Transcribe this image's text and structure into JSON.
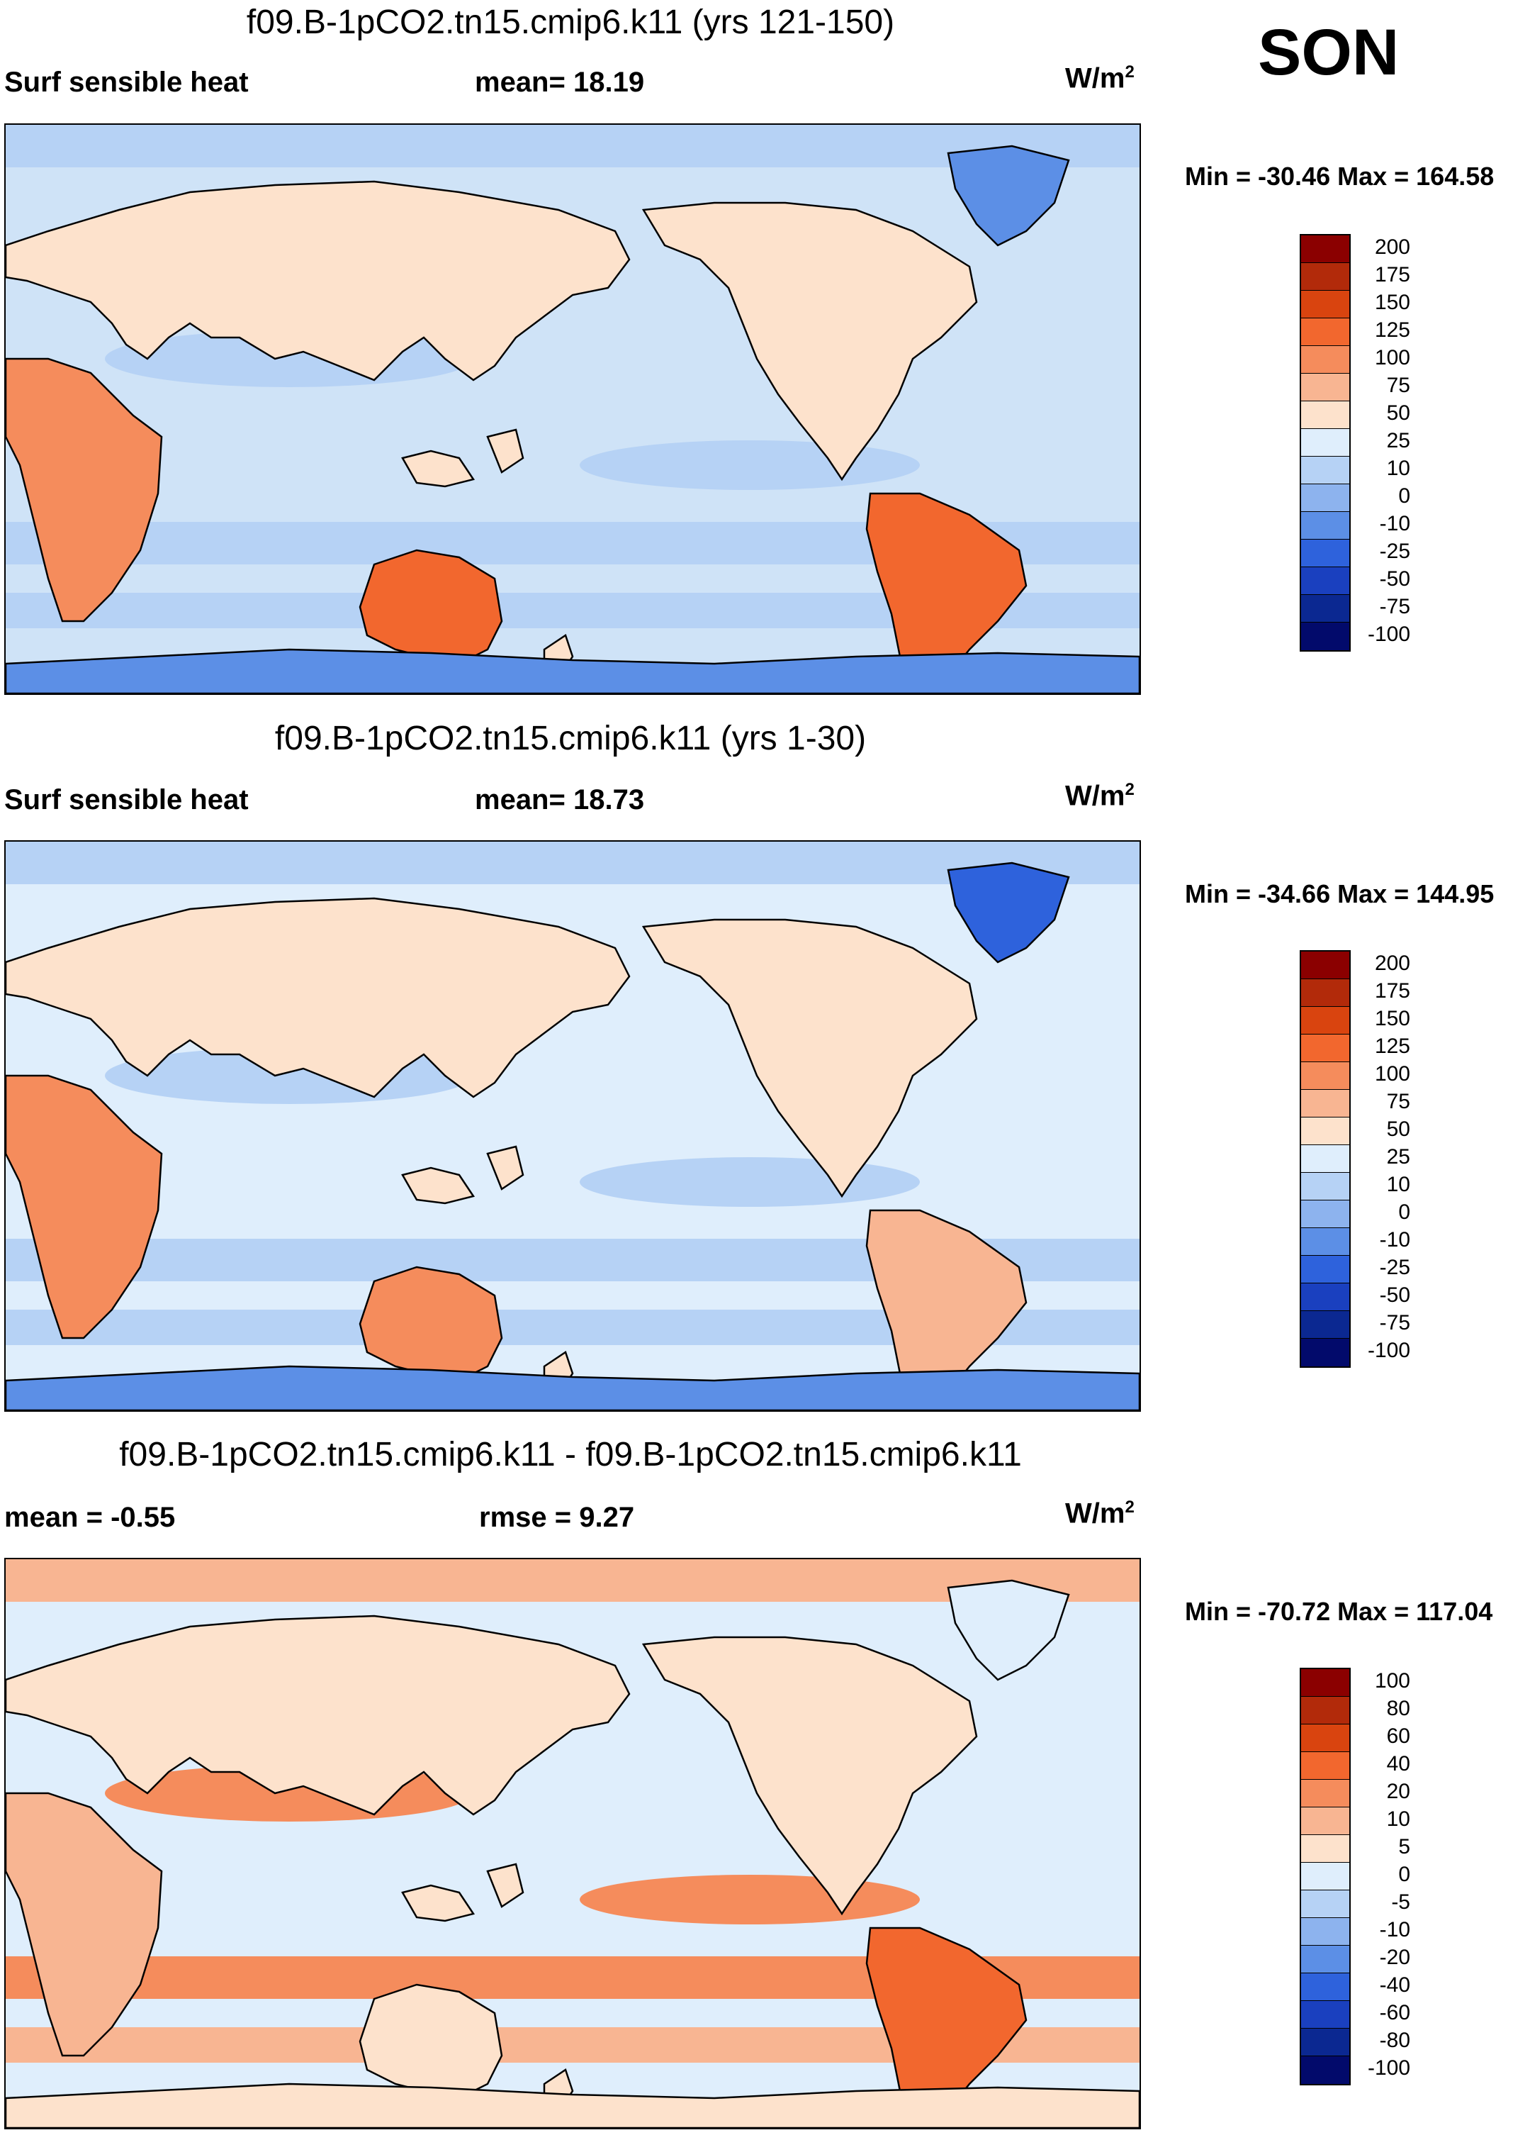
{
  "season": "SON",
  "panels": [
    {
      "title": "f09.B-1pCO2.tn15.cmip6.k11 (yrs 121-150)",
      "left_label": "Surf sensible heat",
      "mid_label": "mean=  18.19",
      "units": "W/m",
      "units_sup": "2",
      "minmax": "Min = -30.46 Max = 164.58",
      "colorbar": {
        "colors": [
          "#8b0000",
          "#b22a0a",
          "#d9440f",
          "#f2672e",
          "#f58c5c",
          "#f8b592",
          "#fde2cc",
          "#dfeefc",
          "#b6d2f5",
          "#8db3ee",
          "#5c8fe6",
          "#2e62dc",
          "#1a40bf",
          "#0b2891",
          "#020a6b"
        ],
        "ticks": [
          "200",
          "175",
          "150",
          "125",
          "100",
          "75",
          "50",
          "25",
          "10",
          "0",
          "-10",
          "-25",
          "-50",
          "-75",
          "-100"
        ]
      },
      "map_style": "a"
    },
    {
      "title": "f09.B-1pCO2.tn15.cmip6.k11 (yrs 1-30)",
      "left_label": "Surf sensible heat",
      "mid_label": "mean=  18.73",
      "units": "W/m",
      "units_sup": "2",
      "minmax": "Min = -34.66 Max = 144.95",
      "colorbar": {
        "colors": [
          "#8b0000",
          "#b22a0a",
          "#d9440f",
          "#f2672e",
          "#f58c5c",
          "#f8b592",
          "#fde2cc",
          "#dfeefc",
          "#b6d2f5",
          "#8db3ee",
          "#5c8fe6",
          "#2e62dc",
          "#1a40bf",
          "#0b2891",
          "#020a6b"
        ],
        "ticks": [
          "200",
          "175",
          "150",
          "125",
          "100",
          "75",
          "50",
          "25",
          "10",
          "0",
          "-10",
          "-25",
          "-50",
          "-75",
          "-100"
        ]
      },
      "map_style": "b"
    },
    {
      "title": "f09.B-1pCO2.tn15.cmip6.k11 - f09.B-1pCO2.tn15.cmip6.k11",
      "left_label": "mean =  -0.55",
      "mid_label": "rmse =    9.27",
      "units": "W/m",
      "units_sup": "2",
      "minmax": "Min = -70.72 Max = 117.04",
      "colorbar": {
        "colors": [
          "#8b0000",
          "#b22a0a",
          "#d9440f",
          "#f2672e",
          "#f58c5c",
          "#f8b592",
          "#fde2cc",
          "#dfeefc",
          "#b6d2f5",
          "#8db3ee",
          "#5c8fe6",
          "#2e62dc",
          "#1a40bf",
          "#0b2891",
          "#020a6b"
        ],
        "ticks": [
          "100",
          "80",
          "60",
          "40",
          "20",
          "10",
          "5",
          "0",
          "-5",
          "-10",
          "-20",
          "-40",
          "-60",
          "-80",
          "-100"
        ]
      },
      "map_style": "c"
    }
  ]
}
